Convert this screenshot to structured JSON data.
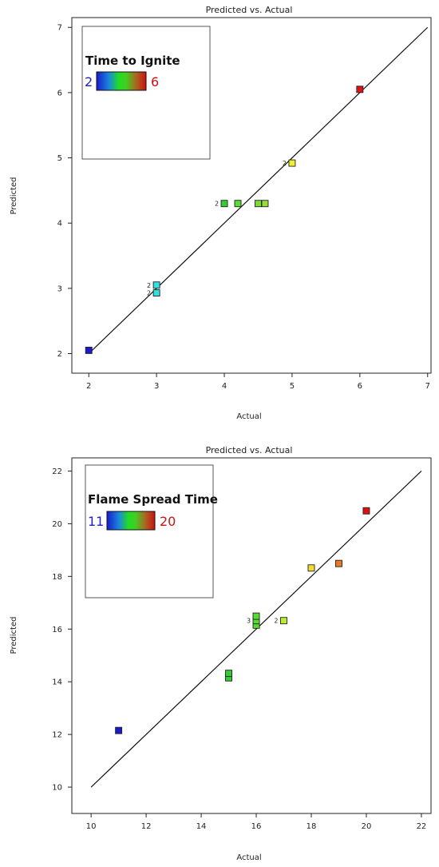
{
  "chart_data": [
    {
      "type": "scatter",
      "title": "Predicted vs. Actual",
      "xlabel": "Actual",
      "ylabel": "Predicted",
      "xlim": [
        1.75,
        7.05
      ],
      "ylim": [
        1.7,
        7.15
      ],
      "xticks": [
        2,
        3,
        4,
        5,
        6,
        7
      ],
      "yticks": [
        2,
        3,
        4,
        5,
        6,
        7
      ],
      "legend": {
        "title": "Time to Ignite",
        "min": "2",
        "max": "6",
        "position": "top-left",
        "min_color": "#2222bb",
        "max_color": "#cc1111"
      },
      "reference_line": [
        [
          2,
          2
        ],
        [
          7,
          7
        ]
      ],
      "points": [
        {
          "x": 2,
          "y": 2.05,
          "color": "#1a1acc"
        },
        {
          "x": 3,
          "y": 2.93,
          "color": "#33e0e0"
        },
        {
          "x": 3,
          "y": 3.05,
          "color": "#33e0e0"
        },
        {
          "x": 4,
          "y": 4.3,
          "color": "#33cc33"
        },
        {
          "x": 4.2,
          "y": 4.3,
          "color": "#55dd33"
        },
        {
          "x": 4.5,
          "y": 4.3,
          "color": "#77dd33"
        },
        {
          "x": 4.6,
          "y": 4.3,
          "color": "#99dd33"
        },
        {
          "x": 5,
          "y": 4.92,
          "color": "#eeee33"
        },
        {
          "x": 6,
          "y": 6.05,
          "color": "#dd1111"
        }
      ],
      "counts": [
        {
          "x": 4,
          "y": 4.3,
          "label": "2"
        },
        {
          "x": 5,
          "y": 4.92,
          "label": "2"
        },
        {
          "x": 3,
          "y": 3.05,
          "label": "2"
        },
        {
          "x": 3,
          "y": 2.93,
          "label": "2"
        }
      ]
    },
    {
      "type": "scatter",
      "title": "Predicted vs. Actual",
      "xlabel": "Actual",
      "ylabel": "Predicted",
      "xlim": [
        9.3,
        22.35
      ],
      "ylim": [
        9.0,
        22.5
      ],
      "xticks": [
        10,
        12,
        14,
        16,
        18,
        20,
        22
      ],
      "yticks": [
        10,
        12,
        14,
        16,
        18,
        20,
        22
      ],
      "legend": {
        "title": "Flame Spread Time",
        "min": "11",
        "max": "20",
        "position": "top-left",
        "min_color": "#2222bb",
        "max_color": "#cc1111"
      },
      "reference_line": [
        [
          10,
          10
        ],
        [
          22,
          22
        ]
      ],
      "points": [
        {
          "x": 11,
          "y": 12.15,
          "color": "#1a1acc"
        },
        {
          "x": 15,
          "y": 14.15,
          "color": "#33cc33"
        },
        {
          "x": 15,
          "y": 14.32,
          "color": "#33cc33"
        },
        {
          "x": 16,
          "y": 16.15,
          "color": "#55dd33"
        },
        {
          "x": 16,
          "y": 16.32,
          "color": "#55dd33"
        },
        {
          "x": 16,
          "y": 16.49,
          "color": "#55dd33"
        },
        {
          "x": 17,
          "y": 16.32,
          "color": "#bbee33"
        },
        {
          "x": 18,
          "y": 18.32,
          "color": "#eedd33"
        },
        {
          "x": 19,
          "y": 18.49,
          "color": "#ee7722"
        },
        {
          "x": 20,
          "y": 20.49,
          "color": "#dd1111"
        }
      ],
      "counts": [
        {
          "x": 16,
          "y": 16.32,
          "label": "3"
        },
        {
          "x": 17,
          "y": 16.32,
          "label": "2"
        }
      ]
    }
  ]
}
